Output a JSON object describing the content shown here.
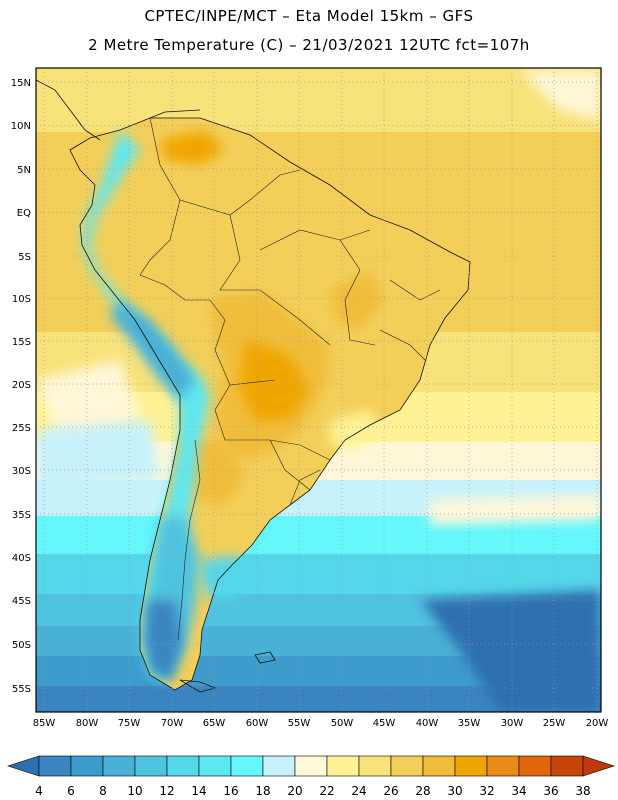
{
  "header": {
    "line1": "CPTEC/INPE/MCT –  Eta Model 15km – GFS",
    "line2": "2 Metre Temperature (C) – 21/03/2021 12UTC fct=107h"
  },
  "map": {
    "lat_labels": [
      "15N",
      "10N",
      "5N",
      "EQ",
      "5S",
      "10S",
      "15S",
      "20S",
      "25S",
      "30S",
      "35S",
      "40S",
      "45S",
      "50S",
      "55S"
    ],
    "lon_labels": [
      "85W",
      "80W",
      "75W",
      "70W",
      "65W",
      "60W",
      "55W",
      "50W",
      "45W",
      "40W",
      "35W",
      "30W",
      "25W",
      "20W"
    ]
  },
  "colorbar": {
    "labels": [
      "4",
      "6",
      "8",
      "10",
      "12",
      "14",
      "16",
      "18",
      "20",
      "22",
      "24",
      "26",
      "28",
      "30",
      "32",
      "34",
      "36",
      "38"
    ],
    "colors": [
      "#2d6fb0",
      "#3a85c1",
      "#3e9ccc",
      "#49b1d6",
      "#4fc4e0",
      "#55d7ea",
      "#5be8f3",
      "#65f7fb",
      "#c8f2fb",
      "#fff7d8",
      "#fff295",
      "#f8e27a",
      "#f3cf5a",
      "#f0bd3a",
      "#f0a600",
      "#ea8a17",
      "#e0660c",
      "#c8450a",
      "#c0390c"
    ]
  }
}
